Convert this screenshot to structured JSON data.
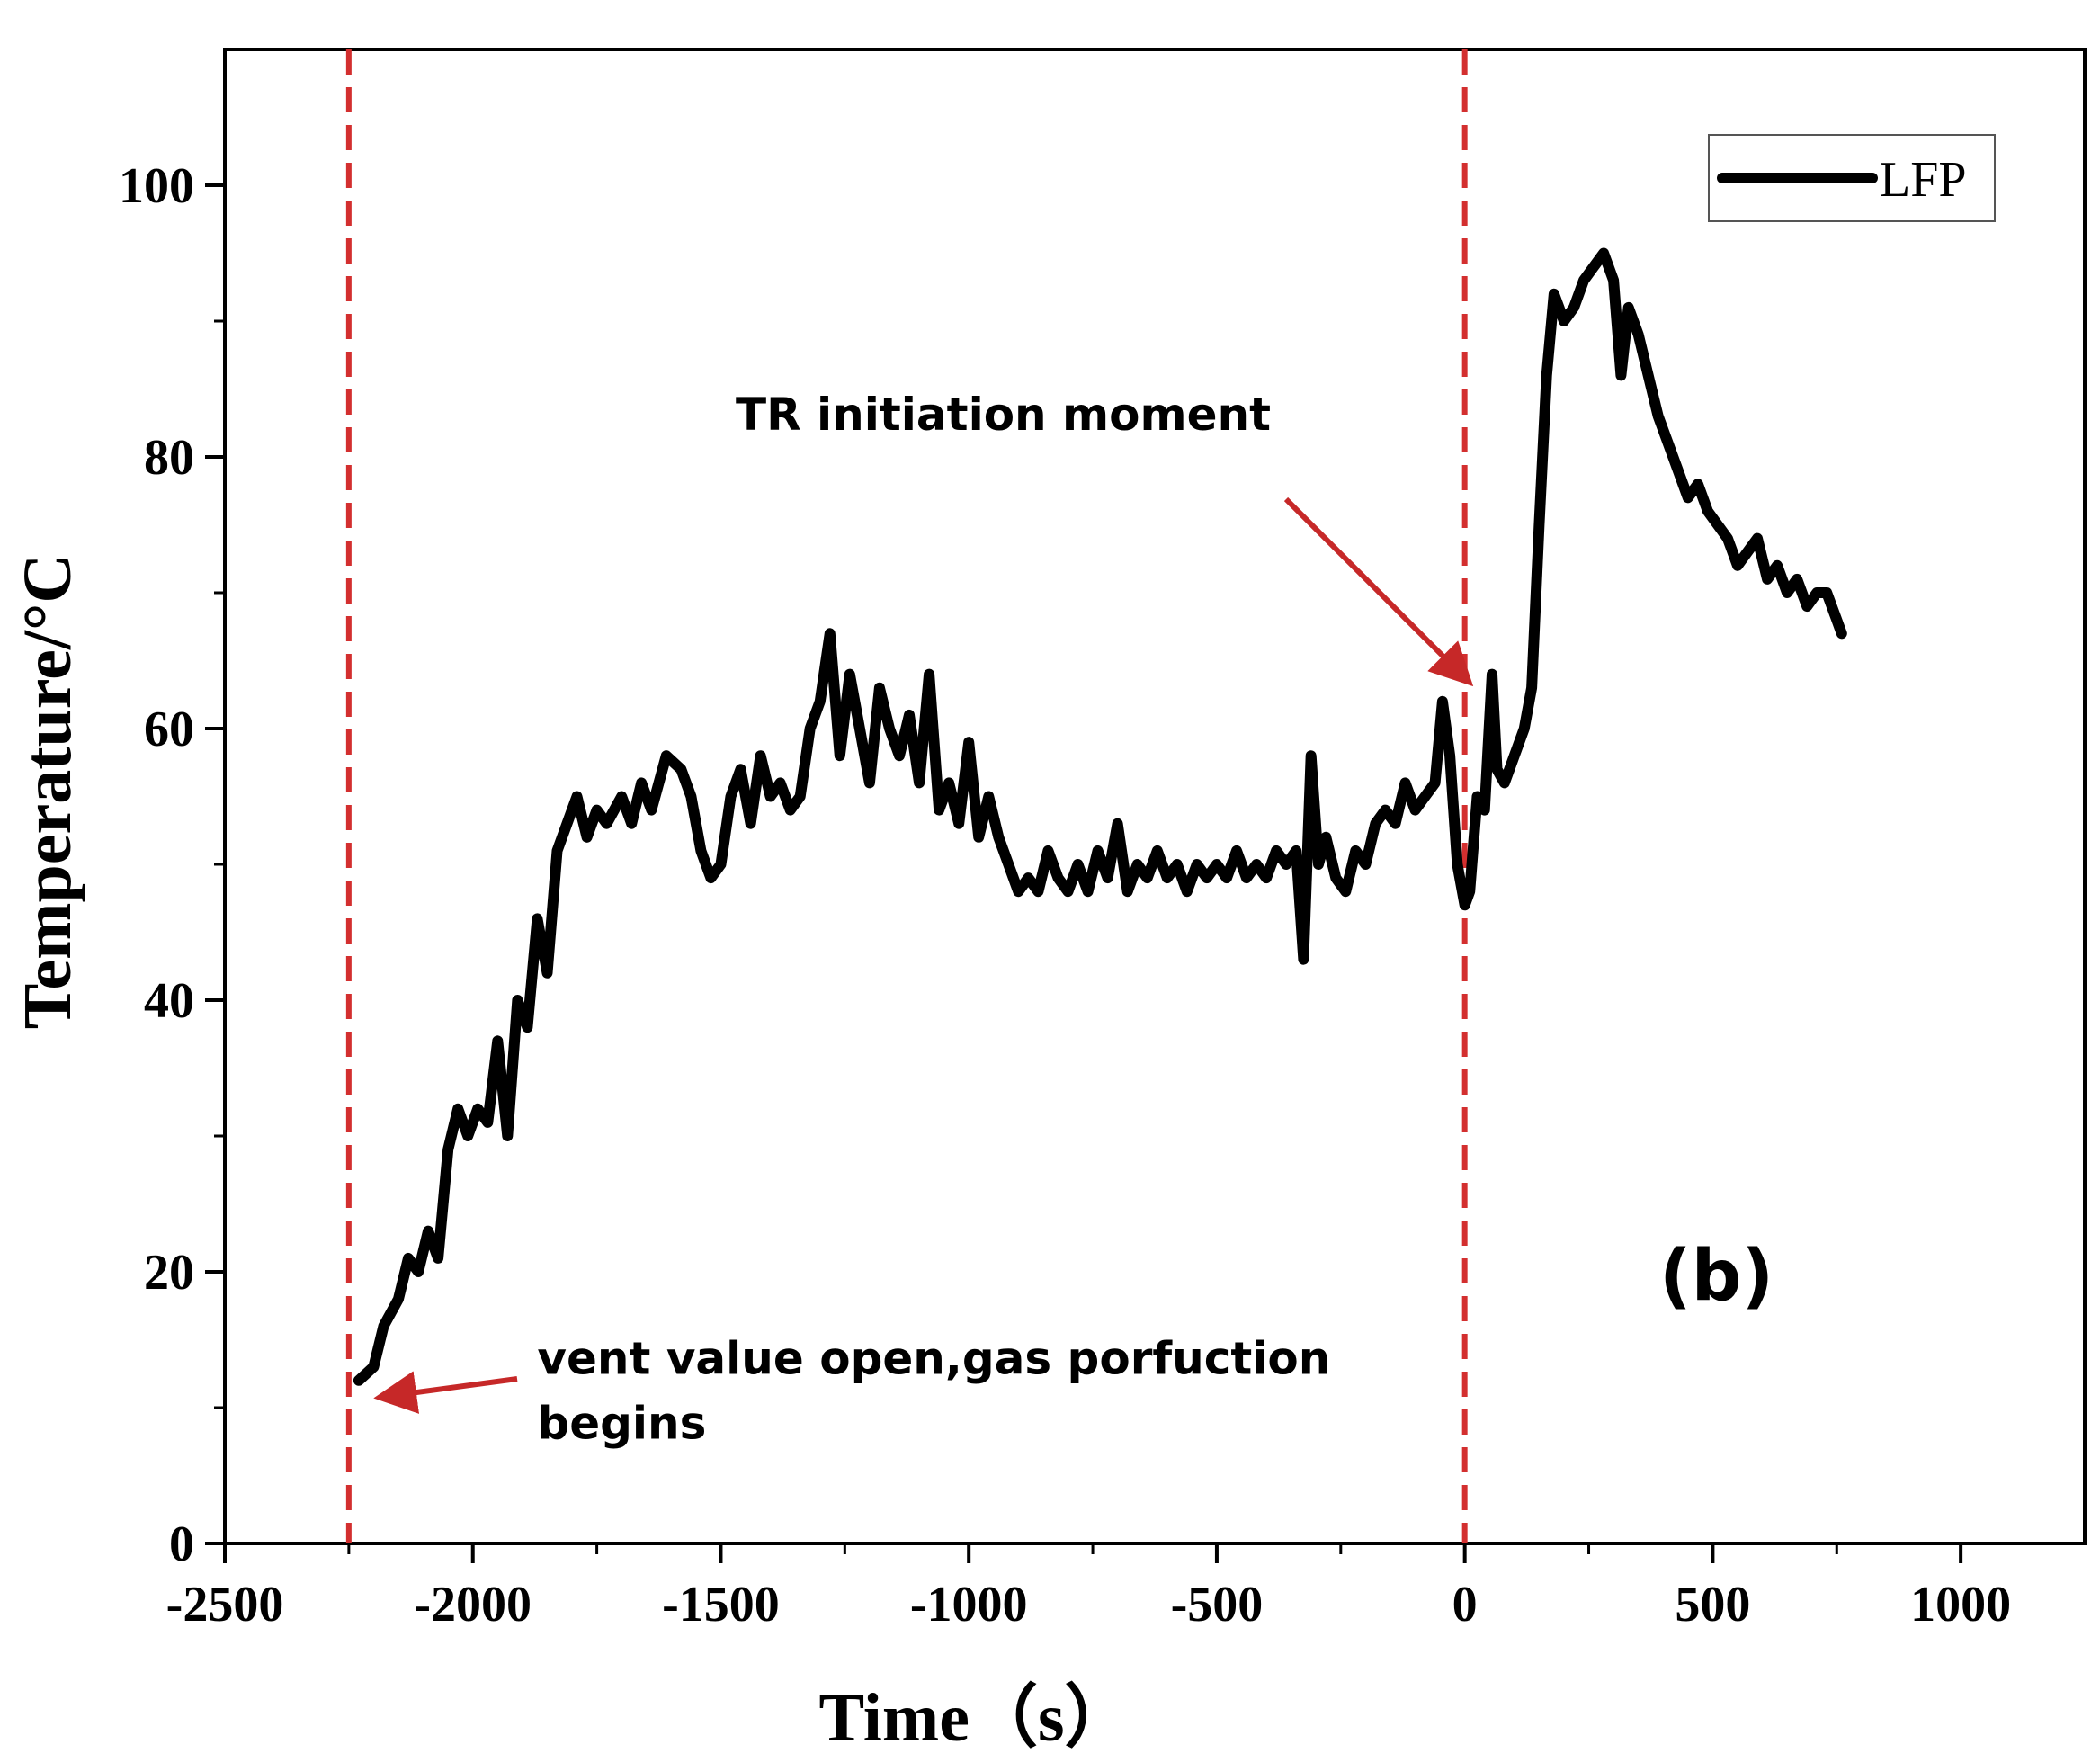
{
  "chart_data": {
    "type": "line",
    "title": "",
    "xlabel": "Time（s）",
    "ylabel": "Temperature/°C",
    "xlim": [
      -2500,
      1250
    ],
    "ylim": [
      0,
      110
    ],
    "xticks": [
      -2500,
      -2000,
      -1500,
      -1000,
      -500,
      0,
      500,
      1000
    ],
    "xtick_labels": [
      "-2500",
      "-2000",
      "-1500",
      "-1000",
      "-500",
      "0",
      "500",
      "1000"
    ],
    "yticks": [
      0,
      20,
      40,
      60,
      80,
      100
    ],
    "ytick_labels": [
      "0",
      "20",
      "40",
      "60",
      "80",
      "100"
    ],
    "legend": {
      "label": "LFP",
      "position": "top-right"
    },
    "panel_label": "(b)",
    "vlines": [
      {
        "x": -2250,
        "color": "#d32f2f",
        "style": "dashed"
      },
      {
        "x": 0,
        "color": "#d32f2f",
        "style": "dashed"
      }
    ],
    "annotations": [
      {
        "text": "TR initiation moment",
        "target": [
          20,
          63
        ],
        "text_pos": [
          -1470,
          82
        ]
      },
      {
        "text_lines": [
          "vent value open,gas porfuction",
          "begins"
        ],
        "target": [
          -2215,
          11
        ],
        "text_pos": [
          -1870,
          12.5
        ]
      }
    ],
    "series": [
      {
        "name": "LFP",
        "color": "#000000",
        "points": [
          [
            -2230,
            12
          ],
          [
            -2200,
            13
          ],
          [
            -2180,
            16
          ],
          [
            -2150,
            18
          ],
          [
            -2130,
            21
          ],
          [
            -2110,
            20
          ],
          [
            -2090,
            23
          ],
          [
            -2070,
            21
          ],
          [
            -2050,
            29
          ],
          [
            -2030,
            32
          ],
          [
            -2010,
            30
          ],
          [
            -1990,
            32
          ],
          [
            -1970,
            31
          ],
          [
            -1950,
            37
          ],
          [
            -1930,
            30
          ],
          [
            -1910,
            40
          ],
          [
            -1890,
            38
          ],
          [
            -1870,
            46
          ],
          [
            -1850,
            42
          ],
          [
            -1830,
            51
          ],
          [
            -1810,
            53
          ],
          [
            -1790,
            55
          ],
          [
            -1770,
            52
          ],
          [
            -1750,
            54
          ],
          [
            -1730,
            53
          ],
          [
            -1700,
            55
          ],
          [
            -1680,
            53
          ],
          [
            -1660,
            56
          ],
          [
            -1640,
            54
          ],
          [
            -1610,
            58
          ],
          [
            -1580,
            57
          ],
          [
            -1560,
            55
          ],
          [
            -1540,
            51
          ],
          [
            -1520,
            49
          ],
          [
            -1500,
            50
          ],
          [
            -1480,
            55
          ],
          [
            -1460,
            57
          ],
          [
            -1440,
            53
          ],
          [
            -1420,
            58
          ],
          [
            -1400,
            55
          ],
          [
            -1380,
            56
          ],
          [
            -1360,
            54
          ],
          [
            -1340,
            55
          ],
          [
            -1320,
            60
          ],
          [
            -1300,
            62
          ],
          [
            -1280,
            67
          ],
          [
            -1260,
            58
          ],
          [
            -1240,
            64
          ],
          [
            -1220,
            60
          ],
          [
            -1200,
            56
          ],
          [
            -1180,
            63
          ],
          [
            -1160,
            60
          ],
          [
            -1140,
            58
          ],
          [
            -1120,
            61
          ],
          [
            -1100,
            56
          ],
          [
            -1080,
            64
          ],
          [
            -1060,
            54
          ],
          [
            -1040,
            56
          ],
          [
            -1020,
            53
          ],
          [
            -1000,
            59
          ],
          [
            -980,
            52
          ],
          [
            -960,
            55
          ],
          [
            -940,
            52
          ],
          [
            -920,
            50
          ],
          [
            -900,
            48
          ],
          [
            -880,
            49
          ],
          [
            -860,
            48
          ],
          [
            -840,
            51
          ],
          [
            -820,
            49
          ],
          [
            -800,
            48
          ],
          [
            -780,
            50
          ],
          [
            -760,
            48
          ],
          [
            -740,
            51
          ],
          [
            -720,
            49
          ],
          [
            -700,
            53
          ],
          [
            -680,
            48
          ],
          [
            -660,
            50
          ],
          [
            -640,
            49
          ],
          [
            -620,
            51
          ],
          [
            -600,
            49
          ],
          [
            -580,
            50
          ],
          [
            -560,
            48
          ],
          [
            -540,
            50
          ],
          [
            -520,
            49
          ],
          [
            -500,
            50
          ],
          [
            -480,
            49
          ],
          [
            -460,
            51
          ],
          [
            -440,
            49
          ],
          [
            -420,
            50
          ],
          [
            -400,
            49
          ],
          [
            -380,
            51
          ],
          [
            -360,
            50
          ],
          [
            -340,
            51
          ],
          [
            -325,
            43
          ],
          [
            -310,
            58
          ],
          [
            -295,
            50
          ],
          [
            -280,
            52
          ],
          [
            -260,
            49
          ],
          [
            -240,
            48
          ],
          [
            -220,
            51
          ],
          [
            -200,
            50
          ],
          [
            -180,
            53
          ],
          [
            -160,
            54
          ],
          [
            -140,
            53
          ],
          [
            -120,
            56
          ],
          [
            -100,
            54
          ],
          [
            -80,
            55
          ],
          [
            -60,
            56
          ],
          [
            -45,
            62
          ],
          [
            -30,
            58
          ],
          [
            -15,
            50
          ],
          [
            0,
            47
          ],
          [
            10,
            48
          ],
          [
            25,
            55
          ],
          [
            40,
            54
          ],
          [
            55,
            64
          ],
          [
            65,
            57
          ],
          [
            80,
            56
          ],
          [
            100,
            58
          ],
          [
            120,
            60
          ],
          [
            135,
            63
          ],
          [
            150,
            75
          ],
          [
            165,
            86
          ],
          [
            180,
            92
          ],
          [
            200,
            90
          ],
          [
            220,
            91
          ],
          [
            240,
            93
          ],
          [
            260,
            94
          ],
          [
            280,
            95
          ],
          [
            300,
            93
          ],
          [
            315,
            86
          ],
          [
            330,
            91
          ],
          [
            350,
            89
          ],
          [
            370,
            86
          ],
          [
            390,
            83
          ],
          [
            410,
            81
          ],
          [
            430,
            79
          ],
          [
            450,
            77
          ],
          [
            470,
            78
          ],
          [
            490,
            76
          ],
          [
            510,
            75
          ],
          [
            530,
            74
          ],
          [
            550,
            72
          ],
          [
            570,
            73
          ],
          [
            590,
            74
          ],
          [
            610,
            71
          ],
          [
            630,
            72
          ],
          [
            650,
            70
          ],
          [
            670,
            71
          ],
          [
            690,
            69
          ],
          [
            710,
            70
          ],
          [
            730,
            70
          ],
          [
            750,
            68
          ],
          [
            760,
            67
          ]
        ]
      }
    ]
  }
}
